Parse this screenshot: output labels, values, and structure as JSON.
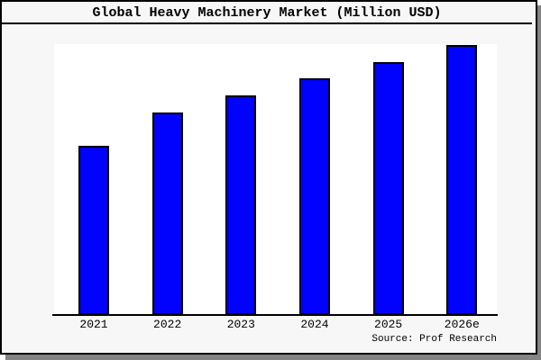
{
  "title": "Global Heavy Machinery Market (Million USD)",
  "source": "Source: Prof Research",
  "colors": {
    "bar_fill": "#0101fe",
    "bar_border": "#000000",
    "figure_bg": "#f7f7f7",
    "plot_bg": "#ffffff",
    "axis": "#000000",
    "shadow": "#848484",
    "text": "#000000"
  },
  "chart_data": {
    "type": "bar",
    "title": "Global Heavy Machinery Market (Million USD)",
    "categories": [
      "2021",
      "2022",
      "2023",
      "2024",
      "2025",
      "2026e"
    ],
    "values": [
      188,
      225,
      244,
      263,
      281,
      300
    ],
    "value_note": "No y-axis ticks or data labels shown; values are relative bar heights (pixels, baseline = 0 at axis, tallest bar 2026e = 300)",
    "xlabel": "",
    "ylabel": "",
    "grid": false,
    "legend": false,
    "source": "Source: Prof Research"
  }
}
